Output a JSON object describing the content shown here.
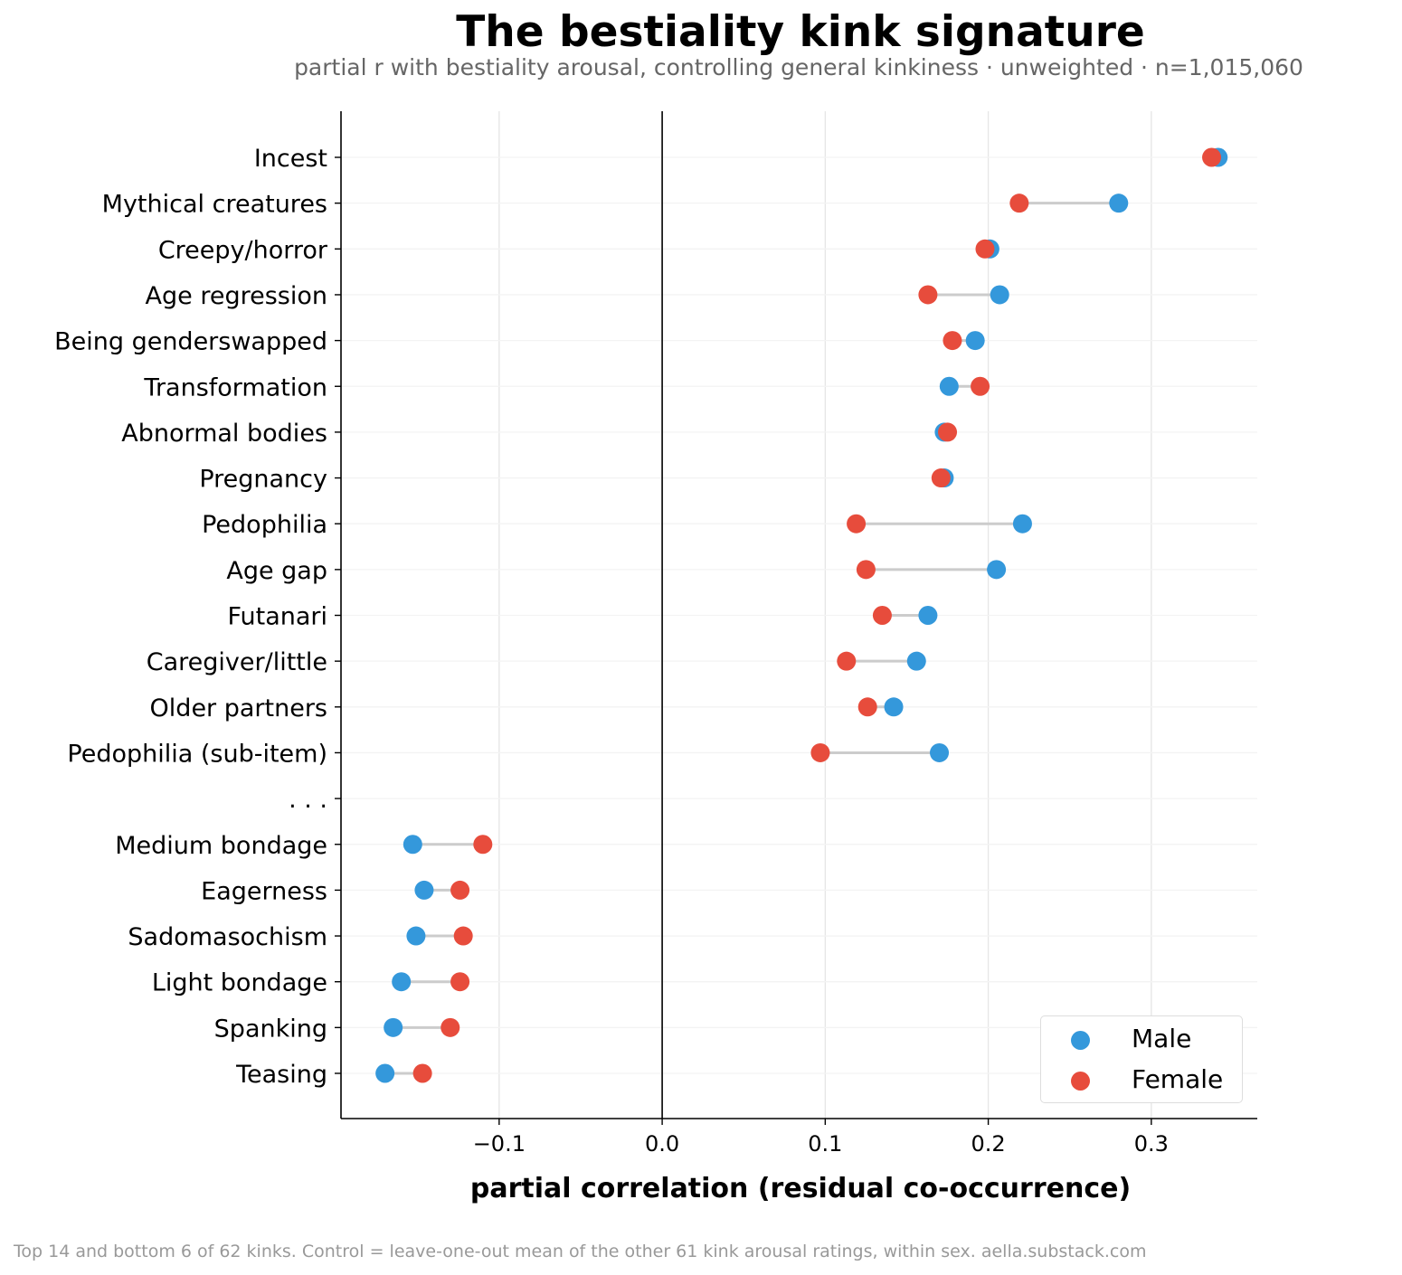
{
  "chart_data": {
    "type": "dumbbell",
    "title": "The bestiality kink signature",
    "subtitle": "partial r with bestiality arousal, controlling general kinkiness · unweighted · n=1,015,060",
    "xlabel": "partial correlation (residual co-occurrence)",
    "ylabel": "",
    "xlim": [
      -0.197,
      0.365
    ],
    "xticks": [
      -0.1,
      0.0,
      0.1,
      0.2,
      0.3
    ],
    "xtick_labels": [
      "−0.1",
      "0.0",
      "0.1",
      "0.2",
      "0.3"
    ],
    "grid": true,
    "zero_line": true,
    "legend_position": "bottom-right",
    "colors": {
      "Male": "#3498db",
      "Female": "#e74c3c",
      "connector": "#cccccc"
    },
    "series": [
      {
        "name": "Male",
        "color": "#3498db"
      },
      {
        "name": "Female",
        "color": "#e74c3c"
      }
    ],
    "categories": [
      {
        "label": "Incest",
        "male": 0.341,
        "female": 0.337
      },
      {
        "label": "Mythical creatures",
        "male": 0.28,
        "female": 0.219
      },
      {
        "label": "Creepy/horror",
        "male": 0.201,
        "female": 0.198
      },
      {
        "label": "Age regression",
        "male": 0.207,
        "female": 0.163
      },
      {
        "label": "Being genderswapped",
        "male": 0.192,
        "female": 0.178
      },
      {
        "label": "Transformation",
        "male": 0.176,
        "female": 0.195
      },
      {
        "label": "Abnormal bodies",
        "male": 0.173,
        "female": 0.175
      },
      {
        "label": "Pregnancy",
        "male": 0.173,
        "female": 0.171
      },
      {
        "label": "Pedophilia",
        "male": 0.221,
        "female": 0.119
      },
      {
        "label": "Age gap",
        "male": 0.205,
        "female": 0.125
      },
      {
        "label": "Futanari",
        "male": 0.163,
        "female": 0.135
      },
      {
        "label": "Caregiver/little",
        "male": 0.156,
        "female": 0.113
      },
      {
        "label": "Older partners",
        "male": 0.142,
        "female": 0.126
      },
      {
        "label": "Pedophilia (sub-item)",
        "male": 0.17,
        "female": 0.097
      },
      {
        "label": ". . .",
        "male": null,
        "female": null
      },
      {
        "label": "Medium bondage",
        "male": -0.153,
        "female": -0.11
      },
      {
        "label": "Eagerness",
        "male": -0.146,
        "female": -0.124
      },
      {
        "label": "Sadomasochism",
        "male": -0.151,
        "female": -0.122
      },
      {
        "label": "Light bondage",
        "male": -0.16,
        "female": -0.124
      },
      {
        "label": "Spanking",
        "male": -0.165,
        "female": -0.13
      },
      {
        "label": "Teasing",
        "male": -0.17,
        "female": -0.147
      }
    ],
    "footnote": "Top 14 and bottom 6 of 62 kinks. Control = leave-one-out mean of the other 61 kink arousal ratings, within sex.  aella.substack.com"
  }
}
